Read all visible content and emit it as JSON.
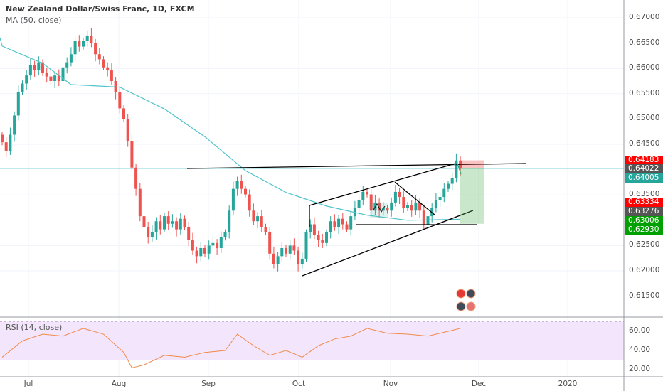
{
  "header": {
    "title": "New Zealand Dollar/Swiss Franc, 1D, FXCM",
    "ma_label": "MA (50, close)",
    "rsi_label": "RSI (14, close)"
  },
  "colors": {
    "up": "#26a69a",
    "down": "#ef5350",
    "ma": "#4fc3c9",
    "rsi": "#f08a4b",
    "rsi_band": "#f3e6fc",
    "grid": "#f0f3fa"
  },
  "price_badges": [
    {
      "value": "0.64183",
      "color": "#ff0000"
    },
    {
      "value": "0.64022",
      "color": "#555555"
    },
    {
      "value": "0.64005",
      "color": "#26a69a"
    },
    {
      "value": "0.63334",
      "color": "#ff0000"
    },
    {
      "value": "0.63276",
      "color": "#555555"
    },
    {
      "value": "0.63006",
      "color": "#00a000"
    },
    {
      "value": "0.62930",
      "color": "#00a000"
    }
  ],
  "chart_data": {
    "type": "candlestick",
    "title": "New Zealand Dollar/Swiss Franc, 1D, FXCM",
    "y_ticks": [
      "0.67000",
      "0.66500",
      "0.66000",
      "0.65500",
      "0.65000",
      "0.64500",
      "0.63500",
      "0.62500",
      "0.62000",
      "0.61500"
    ],
    "y_tick_values": [
      0.67,
      0.665,
      0.66,
      0.655,
      0.65,
      0.645,
      0.635,
      0.625,
      0.62,
      0.615
    ],
    "ylim": [
      0.6115,
      0.6735
    ],
    "x_ticks": [
      "Jul",
      "Aug",
      "Sep",
      "Oct",
      "Nov",
      "Dec",
      "2020"
    ],
    "closes": [
      0.6454,
      0.6437,
      0.6469,
      0.6507,
      0.6554,
      0.657,
      0.6586,
      0.6607,
      0.6596,
      0.6612,
      0.6591,
      0.6584,
      0.6575,
      0.6586,
      0.6575,
      0.6602,
      0.6612,
      0.6628,
      0.6654,
      0.6643,
      0.6655,
      0.6665,
      0.665,
      0.6628,
      0.6618,
      0.6602,
      0.6596,
      0.6575,
      0.6553,
      0.6521,
      0.65,
      0.6457,
      0.6404,
      0.6362,
      0.6308,
      0.6287,
      0.6266,
      0.6276,
      0.6298,
      0.6282,
      0.6308,
      0.6293,
      0.6298,
      0.6282,
      0.6303,
      0.6287,
      0.6261,
      0.624,
      0.6229,
      0.6245,
      0.6234,
      0.625,
      0.6255,
      0.6245,
      0.6266,
      0.6276,
      0.6319,
      0.6362,
      0.6378,
      0.6362,
      0.6351,
      0.6319,
      0.6298,
      0.6308,
      0.6287,
      0.6276,
      0.6234,
      0.6213,
      0.6229,
      0.6245,
      0.6234,
      0.625,
      0.624,
      0.6213,
      0.6224,
      0.6276,
      0.6292,
      0.6271,
      0.6261,
      0.6255,
      0.6276,
      0.6298,
      0.6287,
      0.6303,
      0.6292,
      0.6282,
      0.6308,
      0.6324,
      0.634,
      0.6356,
      0.6351,
      0.6319,
      0.6335,
      0.6319,
      0.6324,
      0.6319,
      0.6335,
      0.6356,
      0.6346,
      0.6324,
      0.633,
      0.6319,
      0.6335,
      0.6319,
      0.6292,
      0.6308,
      0.6324,
      0.634,
      0.6346,
      0.6362,
      0.6372,
      0.6383,
      0.6418,
      0.6402
    ],
    "ma50": [
      [
        0,
        0.6644
      ],
      [
        10,
        0.661
      ],
      [
        17,
        0.6568
      ],
      [
        29,
        0.6563
      ],
      [
        40,
        0.652
      ],
      [
        50,
        0.6465
      ],
      [
        60,
        0.6398
      ],
      [
        70,
        0.6355
      ],
      [
        80,
        0.6328
      ],
      [
        90,
        0.631
      ],
      [
        100,
        0.63
      ],
      [
        113,
        0.6302
      ]
    ],
    "rsi": {
      "name": "RSI (14, close)",
      "ticks": [
        "60.00",
        "40.00",
        "20.00"
      ],
      "tick_values": [
        60,
        40,
        20
      ],
      "band": [
        30,
        70
      ],
      "points": [
        [
          0,
          33
        ],
        [
          5,
          50
        ],
        [
          10,
          57
        ],
        [
          15,
          55
        ],
        [
          20,
          63
        ],
        [
          25,
          57
        ],
        [
          30,
          38
        ],
        [
          32,
          22
        ],
        [
          35,
          25
        ],
        [
          40,
          35
        ],
        [
          45,
          33
        ],
        [
          50,
          38
        ],
        [
          55,
          40
        ],
        [
          58,
          57
        ],
        [
          62,
          45
        ],
        [
          66,
          35
        ],
        [
          70,
          40
        ],
        [
          74,
          33
        ],
        [
          78,
          45
        ],
        [
          82,
          52
        ],
        [
          86,
          55
        ],
        [
          90,
          63
        ],
        [
          95,
          58
        ],
        [
          100,
          57
        ],
        [
          105,
          55
        ],
        [
          110,
          60
        ],
        [
          113,
          63
        ]
      ]
    },
    "last_price": 0.64022
  }
}
